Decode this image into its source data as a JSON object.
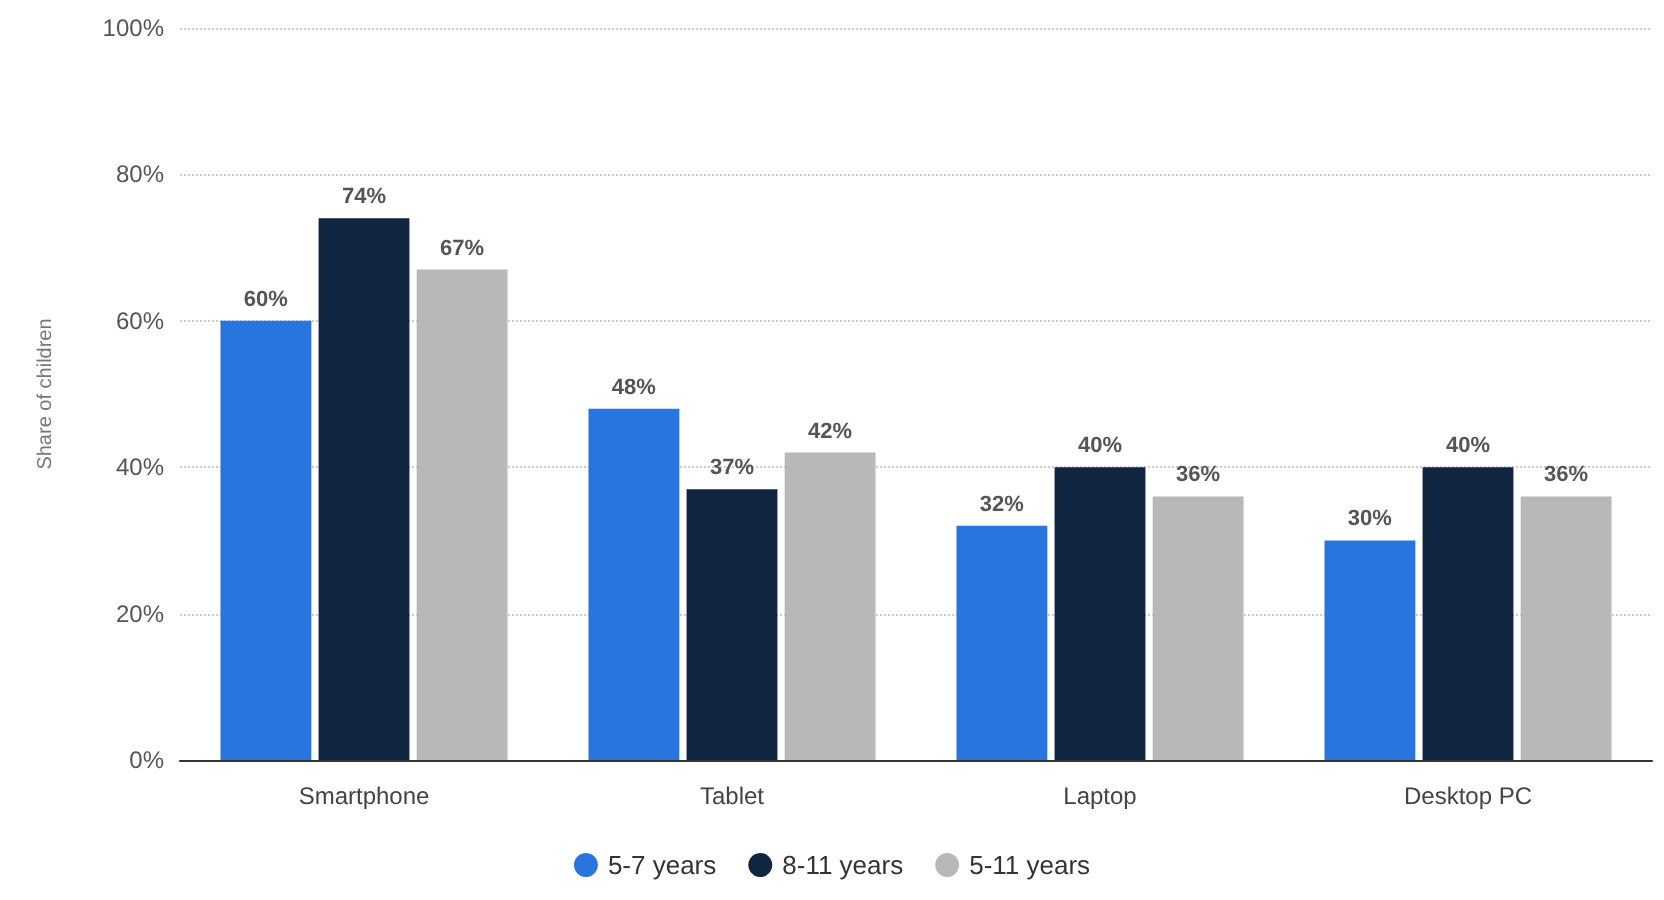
{
  "chart_data": {
    "type": "bar",
    "ylabel": "Share of children",
    "categories": [
      "Smartphone",
      "Tablet",
      "Laptop",
      "Desktop PC"
    ],
    "series": [
      {
        "name": "5-7 years",
        "color": "#2876dd",
        "values": [
          60,
          48,
          32,
          30
        ],
        "value_labels": [
          "60%",
          "48%",
          "32%",
          "30%"
        ]
      },
      {
        "name": "8-11 years",
        "color": "#10253f",
        "values": [
          74,
          37,
          40,
          40
        ],
        "value_labels": [
          "74%",
          "37%",
          "40%",
          "40%"
        ]
      },
      {
        "name": "5-11 years",
        "color": "#b8b8b8",
        "values": [
          67,
          42,
          36,
          36
        ],
        "value_labels": [
          "67%",
          "42%",
          "36%",
          "36%"
        ]
      }
    ],
    "ylim": [
      0,
      100
    ],
    "yticks": [
      {
        "value": 0,
        "label": "0%"
      },
      {
        "value": 20,
        "label": "20%"
      },
      {
        "value": 40,
        "label": "40%"
      },
      {
        "value": 60,
        "label": "60%"
      },
      {
        "value": 80,
        "label": "80%"
      },
      {
        "value": 100,
        "label": "100%"
      }
    ],
    "grid": "y",
    "legend": "bottom"
  }
}
